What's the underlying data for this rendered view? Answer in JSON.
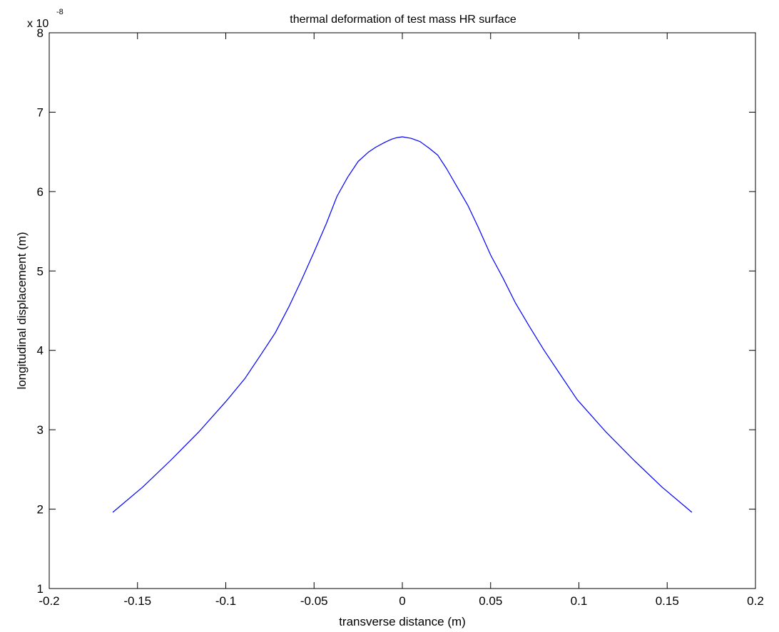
{
  "chart_data": {
    "type": "line",
    "title": "thermal deformation of test mass HR surface",
    "xlabel": "transverse distance (m)",
    "ylabel": "longitudinal displacement  (m)",
    "y_multiplier_text": "x 10",
    "y_multiplier_exponent": "-8",
    "xlim": [
      -0.2,
      0.2
    ],
    "ylim": [
      1,
      8
    ],
    "xticks": [
      -0.2,
      -0.15,
      -0.1,
      -0.05,
      0,
      0.05,
      0.1,
      0.15,
      0.2
    ],
    "xtick_labels": [
      "-0.2",
      "-0.15",
      "-0.1",
      "-0.05",
      "0",
      "0.05",
      "0.1",
      "0.15",
      "0.2"
    ],
    "yticks": [
      1,
      2,
      3,
      4,
      5,
      6,
      7,
      8
    ],
    "ytick_labels": [
      "1",
      "2",
      "3",
      "4",
      "5",
      "6",
      "7",
      "8"
    ],
    "grid": false,
    "line_color": "#0000ff",
    "series": [
      {
        "x": [
          -0.164,
          -0.147,
          -0.131,
          -0.115,
          -0.099,
          -0.089,
          -0.08,
          -0.072,
          -0.064,
          -0.057,
          -0.05,
          -0.043,
          -0.037,
          -0.031,
          -0.025,
          -0.019,
          -0.015,
          -0.01,
          -0.006,
          -0.003,
          0.0,
          0.005,
          0.01,
          0.015,
          0.02,
          0.025,
          0.031,
          0.037,
          0.043,
          0.05,
          0.057,
          0.064,
          0.072,
          0.08,
          0.089,
          0.099,
          0.115,
          0.131,
          0.147,
          0.164
        ],
        "y": [
          1.96,
          2.28,
          2.62,
          2.98,
          3.38,
          3.65,
          3.95,
          4.22,
          4.56,
          4.89,
          5.24,
          5.6,
          5.94,
          6.18,
          6.38,
          6.5,
          6.56,
          6.62,
          6.66,
          6.68,
          6.69,
          6.67,
          6.63,
          6.55,
          6.46,
          6.29,
          6.06,
          5.83,
          5.55,
          5.2,
          4.91,
          4.6,
          4.3,
          4.01,
          3.71,
          3.38,
          2.98,
          2.62,
          2.28,
          1.96
        ]
      }
    ]
  }
}
